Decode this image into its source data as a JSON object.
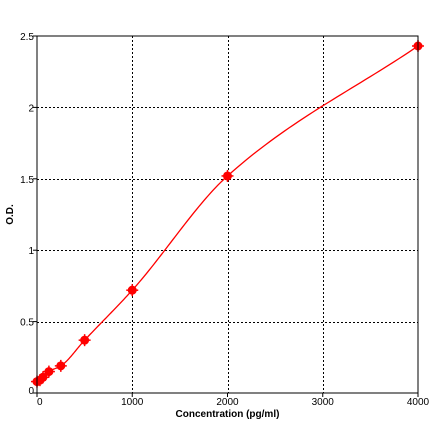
{
  "chart_data": {
    "type": "scatter",
    "title": "",
    "xlabel": "Concentration (pg/ml)",
    "ylabel": "O.D.",
    "xlim": [
      0,
      4000
    ],
    "ylim": [
      0,
      2.5
    ],
    "x_ticks": [
      0,
      1000,
      2000,
      3000,
      4000
    ],
    "x_tick_labels": [
      "0",
      "1000",
      "2000",
      "3000",
      "4000"
    ],
    "y_ticks": [
      0,
      0.5,
      1,
      1.5,
      2,
      2.5
    ],
    "y_tick_labels": [
      "0",
      "0.5",
      "1",
      "1.5",
      "2",
      "2.5"
    ],
    "grid": true,
    "legend": "none",
    "colors": {
      "series": "#ff0000",
      "grid": "#000000",
      "axis": "#000000"
    },
    "series": [
      {
        "x": [
          0,
          31.25,
          62.5,
          125,
          250,
          500,
          1000,
          2000,
          4000
        ],
        "y": [
          0.08,
          0.09,
          0.11,
          0.15,
          0.19,
          0.37,
          0.72,
          1.52,
          2.43
        ],
        "marker": "circle",
        "fit_line": true
      }
    ]
  }
}
